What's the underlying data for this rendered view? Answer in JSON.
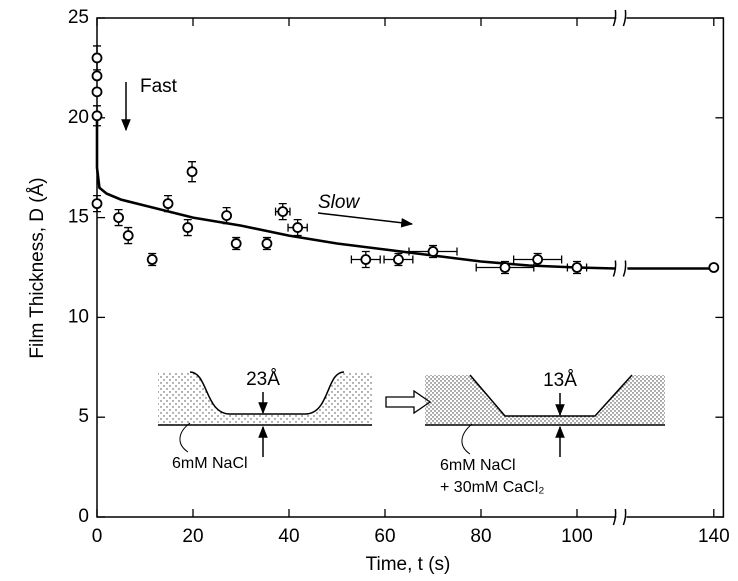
{
  "chart_data": {
    "type": "scatter",
    "x_label": "Time, t (s)",
    "y_label": "Film Thickness, D (Å)",
    "xlim": [
      0,
      142
    ],
    "ylim": [
      0,
      25
    ],
    "xticks": [
      0,
      20,
      40,
      60,
      80,
      100,
      140
    ],
    "yticks": [
      0,
      5,
      10,
      15,
      20,
      25
    ],
    "x_break": [
      108,
      122
    ],
    "points": {
      "color": "#000000",
      "x": [
        0,
        0,
        0,
        0,
        0,
        4.5,
        6.5,
        11.5,
        14.8,
        18.9,
        19.8,
        27,
        29,
        35.4,
        38.7,
        41.8,
        56,
        62.8,
        70,
        85,
        91.8,
        100,
        140
      ],
      "values": [
        23,
        22.1,
        21.3,
        20.1,
        15.7,
        15.0,
        14.1,
        12.9,
        15.7,
        14.5,
        17.3,
        15.1,
        13.7,
        13.7,
        15.3,
        14.5,
        12.9,
        12.9,
        13.3,
        12.5,
        12.9,
        12.5,
        12.5
      ],
      "y_err": [
        0.6,
        null,
        null,
        0.5,
        0.4,
        0.4,
        0.4,
        0.3,
        0.4,
        0.4,
        0.5,
        0.4,
        0.3,
        0.3,
        0.4,
        0.4,
        0.4,
        0.3,
        0.3,
        0.3,
        0.3,
        0.3,
        null
      ],
      "x_err": [
        null,
        null,
        null,
        null,
        null,
        null,
        null,
        null,
        null,
        null,
        null,
        null,
        null,
        null,
        1.5,
        2,
        3,
        3,
        5,
        6,
        5,
        2,
        null
      ]
    },
    "fit": {
      "color": "#000000",
      "x": [
        0,
        0,
        0.5,
        2,
        5,
        10,
        20,
        30,
        40,
        50,
        60,
        70,
        80,
        90,
        100,
        108,
        122,
        140
      ],
      "values": [
        20.1,
        17.5,
        16.5,
        16.2,
        15.9,
        15.6,
        15.0,
        14.6,
        14.1,
        13.7,
        13.4,
        13.1,
        12.8,
        12.6,
        12.5,
        12.45,
        12.45,
        12.45
      ]
    },
    "annotations": {
      "fast": "Fast",
      "slow": "Slow",
      "left_gap": "23Å",
      "left_salt": "6mM NaCl",
      "right_gap": "13Å",
      "right_salt": "6mM NaCl",
      "right_salt2": "+ 30mM CaCl₂"
    }
  }
}
